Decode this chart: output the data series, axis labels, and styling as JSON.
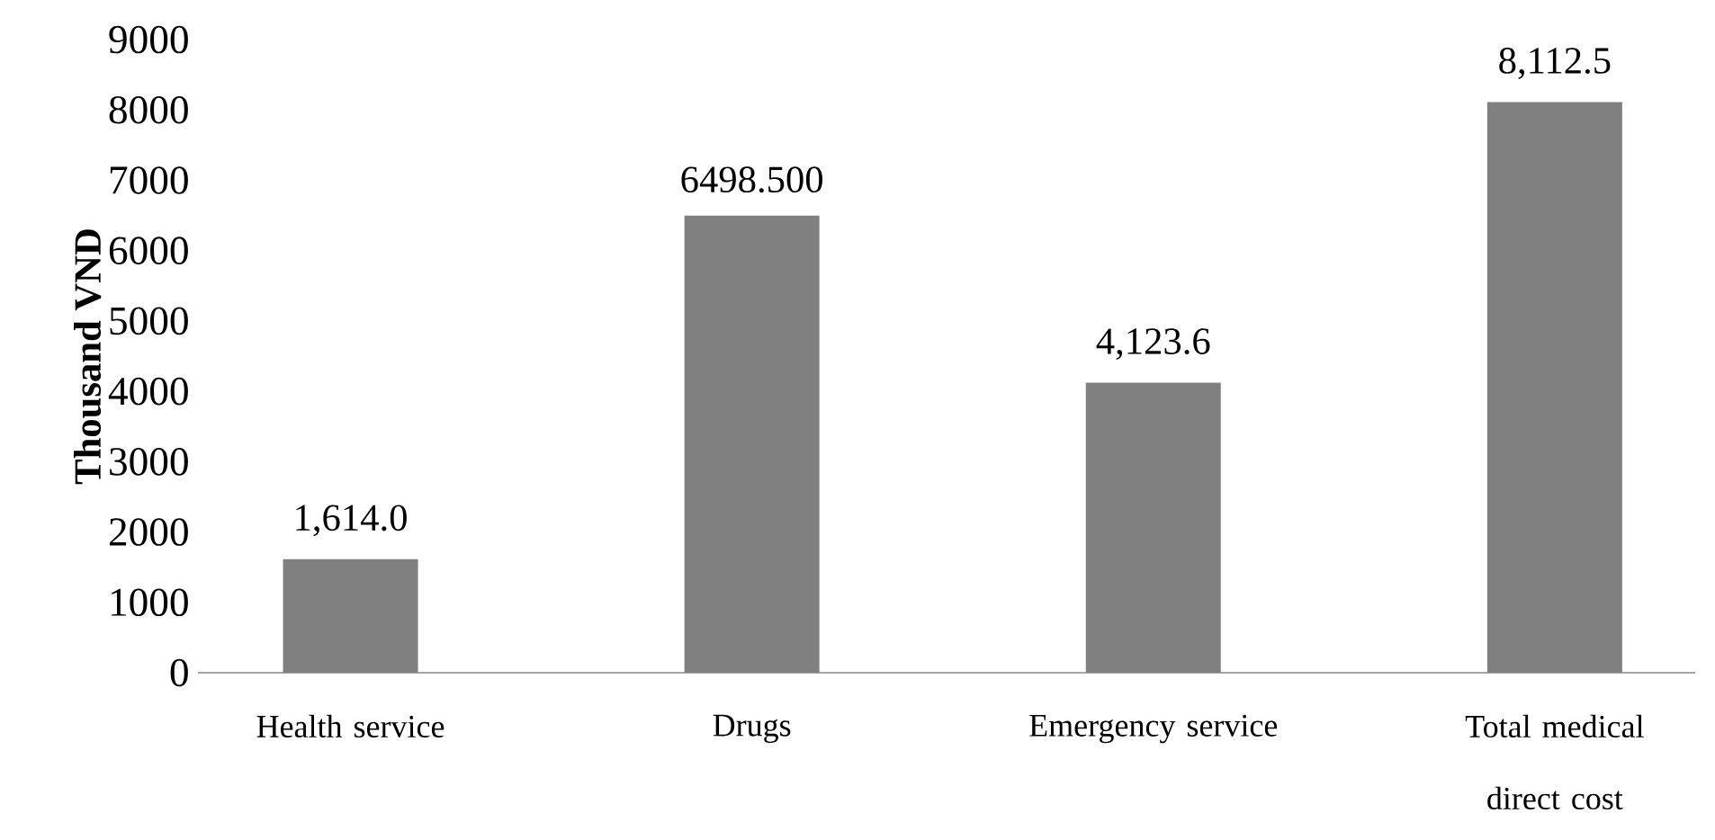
{
  "chart_data": {
    "type": "bar",
    "ylabel": "**Thousand VND**",
    "categories": [
      "Health service",
      "Drugs",
      "Emergency service",
      "Total medical direct cost"
    ],
    "values": [
      1614.0,
      6498.5,
      4123.6,
      8112.5
    ],
    "value_labels": [
      "1,614.0",
      "6498.500",
      "4,123.6",
      "8,112.5"
    ],
    "color": "#808080",
    "ylim": [
      0,
      9000
    ],
    "yticks": [
      0,
      1000,
      2000,
      3000,
      4000,
      5000,
      6000,
      7000,
      8000,
      9000
    ],
    "grid": false
  }
}
